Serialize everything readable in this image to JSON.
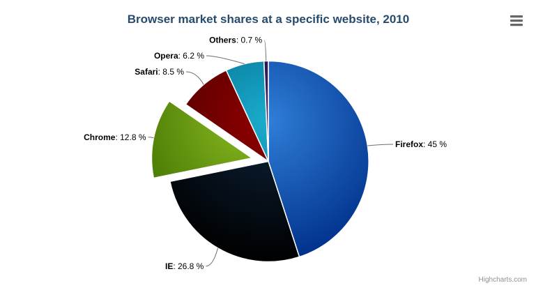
{
  "credits": {
    "label": "Highcharts.com"
  },
  "exporting": {
    "menu_icon": "hamburger-icon"
  },
  "chart_data": {
    "type": "pie",
    "title": "Browser market shares at a specific website, 2010",
    "legend": "none",
    "background_color": "#ffffff",
    "title_color": "#274b6d",
    "label_color": "#000000",
    "connector_color": "#6e6e6e",
    "slice_border_color": "#ffffff",
    "credits_color": "#909090",
    "unit_suffix": " %",
    "label_format": "name: value %",
    "points": [
      {
        "name": "Firefox",
        "value": 45,
        "value_text": "45",
        "color": "#2f7ed8",
        "sliced": false
      },
      {
        "name": "IE",
        "value": 26.8,
        "value_text": "26.8",
        "color": "#0d233a",
        "sliced": false
      },
      {
        "name": "Chrome",
        "value": 12.8,
        "value_text": "12.8",
        "color": "#8bbc21",
        "sliced": true
      },
      {
        "name": "Safari",
        "value": 8.5,
        "value_text": "8.5",
        "color": "#910000",
        "sliced": false
      },
      {
        "name": "Opera",
        "value": 6.2,
        "value_text": "6.2",
        "color": "#1aadce",
        "sliced": false
      },
      {
        "name": "Others",
        "value": 0.7,
        "value_text": "0.7",
        "color": "#492970",
        "sliced": false
      }
    ]
  }
}
